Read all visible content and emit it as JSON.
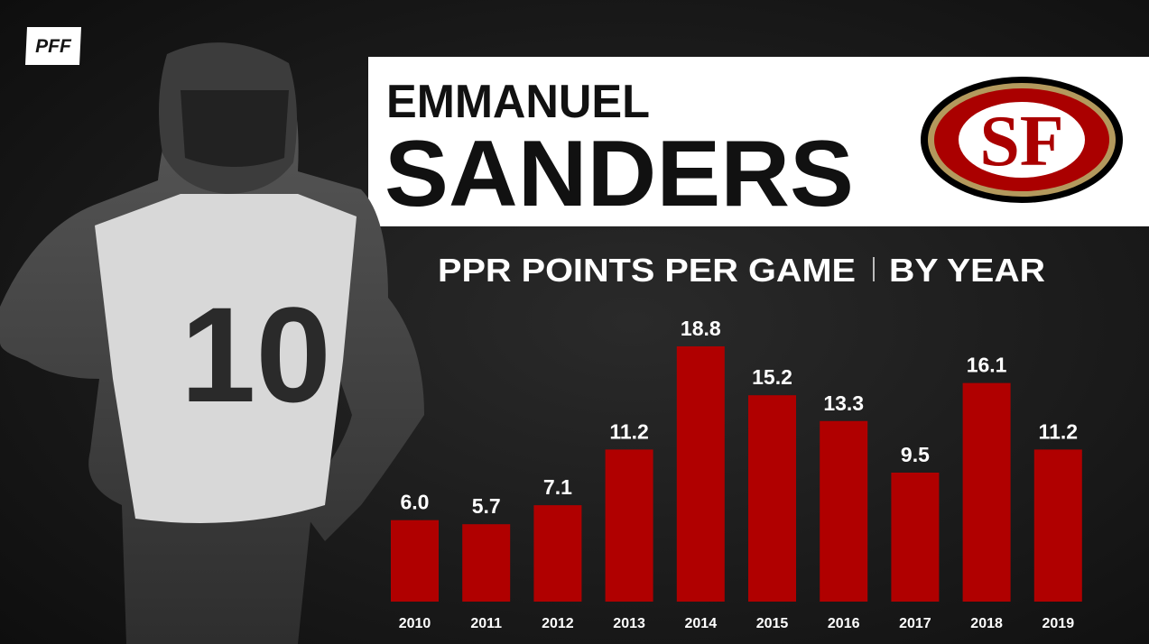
{
  "brand": "PFF",
  "player": {
    "first_name": "EMMANUEL",
    "last_name": "SANDERS"
  },
  "team_logo": "SF",
  "chart_data": {
    "type": "bar",
    "title": "PPR POINTS PER GAME",
    "subtitle": "BY YEAR",
    "categories": [
      "2010",
      "2011",
      "2012",
      "2013",
      "2014",
      "2015",
      "2016",
      "2017",
      "2018",
      "2019"
    ],
    "values": [
      6.0,
      5.7,
      7.1,
      11.2,
      18.8,
      15.2,
      13.3,
      9.5,
      16.1,
      11.2
    ],
    "value_labels": [
      "6.0",
      "5.7",
      "7.1",
      "11.2",
      "18.8",
      "15.2",
      "13.3",
      "9.5",
      "16.1",
      "11.2"
    ],
    "color": "#b00000"
  }
}
